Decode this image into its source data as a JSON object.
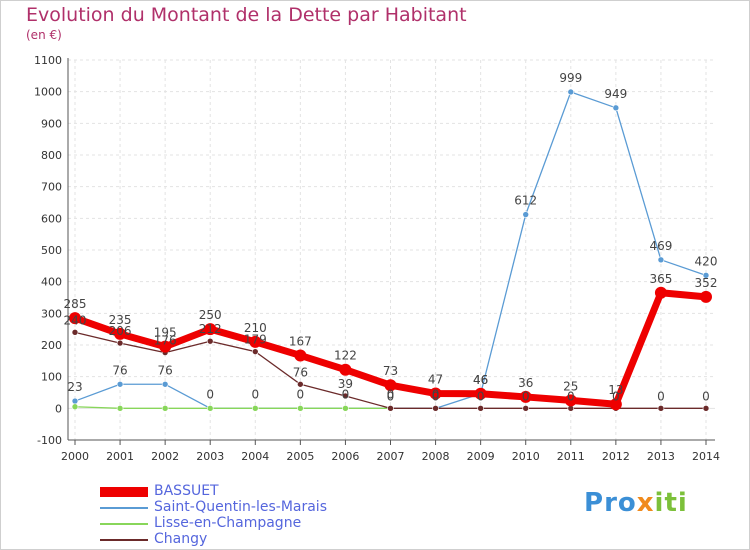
{
  "title": "Evolution du Montant de la Dette par Habitant",
  "subtitle": "(en €)",
  "brand": {
    "letters": [
      {
        "ch": "P",
        "color": "#3b8fd6"
      },
      {
        "ch": "r",
        "color": "#3b8fd6"
      },
      {
        "ch": "o",
        "color": "#3b8fd6"
      },
      {
        "ch": "x",
        "color": "#f08a1c"
      },
      {
        "ch": "i",
        "color": "#7cc03a"
      },
      {
        "ch": "t",
        "color": "#7cc03a"
      },
      {
        "ch": "i",
        "color": "#7cc03a"
      }
    ]
  },
  "chart_data": {
    "type": "line",
    "title": "Evolution du Montant de la Dette par Habitant",
    "subtitle": "(en €)",
    "xlabel": "",
    "ylabel": "",
    "ylim": [
      -100,
      1100
    ],
    "yticks": [
      -100,
      0,
      100,
      200,
      300,
      400,
      500,
      600,
      700,
      800,
      900,
      1000,
      1100
    ],
    "grid": true,
    "legend_position": "bottom-left",
    "categories": [
      "2000",
      "2001",
      "2002",
      "2003",
      "2004",
      "2005",
      "2006",
      "2007",
      "2008",
      "2009",
      "2010",
      "2011",
      "2012",
      "2013",
      "2014"
    ],
    "series": [
      {
        "name": "Saint-Quentin-les-Marais",
        "color": "#5a9bd4",
        "values": [
          23,
          76,
          76,
          0,
          0,
          0,
          0,
          0,
          0,
          46,
          612,
          999,
          949,
          469,
          420
        ],
        "labels": [
          "23",
          "76",
          "76",
          "0",
          "0",
          "0",
          "0",
          "0",
          "0",
          "46",
          "612",
          "999",
          "949",
          "469",
          "420"
        ]
      },
      {
        "name": "Lisse-en-Champagne",
        "color": "#88d65a",
        "values": [
          5,
          0,
          0,
          0,
          0,
          0,
          0,
          0,
          null,
          null,
          null,
          null,
          null,
          null,
          null
        ],
        "labels": []
      },
      {
        "name": "Changy",
        "color": "#6b2a2a",
        "values": [
          240,
          206,
          176,
          212,
          179,
          76,
          39,
          0,
          0,
          0,
          0,
          0,
          0,
          0,
          0
        ],
        "labels": [
          "240",
          "206",
          "176",
          "212",
          "179",
          "76",
          "39",
          "0",
          "0",
          "0",
          "0",
          "0",
          "0",
          "0",
          "0"
        ]
      },
      {
        "name": "BASSUET",
        "color": "#ee0000",
        "values": [
          285,
          235,
          195,
          250,
          210,
          167,
          122,
          73,
          47,
          46,
          36,
          25,
          13,
          365,
          352
        ],
        "labels": [
          "285",
          "235",
          "195",
          "250",
          "210",
          "167",
          "122",
          "73",
          "47",
          "46",
          "36",
          "25",
          "13",
          "365",
          "352"
        ]
      }
    ],
    "legend_order": [
      "BASSUET",
      "Saint-Quentin-les-Marais",
      "Lisse-en-Champagne",
      "Changy"
    ]
  }
}
